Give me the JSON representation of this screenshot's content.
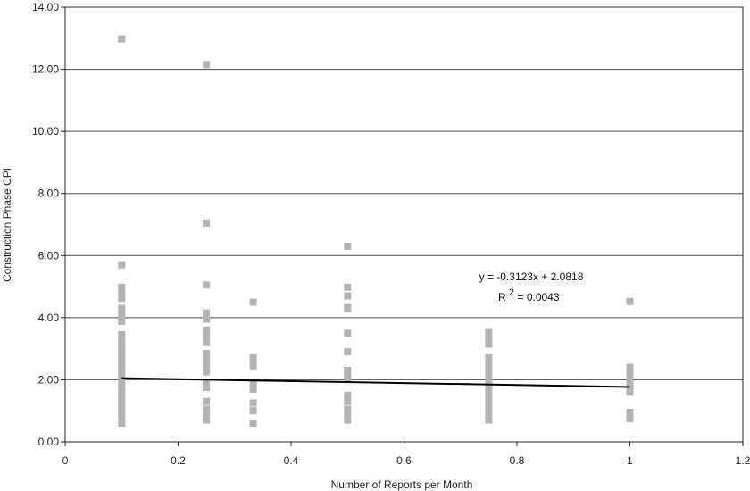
{
  "chart_data": {
    "type": "scatter",
    "title": "",
    "xlabel": "Number of Reports per Month",
    "ylabel": "Construction Phase CPI",
    "xlim": [
      0,
      1.2
    ],
    "ylim": [
      0,
      14
    ],
    "x_ticks": [
      "0",
      "0.2",
      "0.4",
      "0.6",
      "0.8",
      "1",
      "1.2"
    ],
    "y_ticks": [
      "0.00",
      "2.00",
      "4.00",
      "6.00",
      "8.00",
      "10.00",
      "12.00",
      "14.00"
    ],
    "grid": "horizontal",
    "marker_color": "#b3b3b3",
    "trend_color": "#000000",
    "trendline": {
      "slope": -0.3123,
      "intercept": 2.0818,
      "x_range": [
        0.1,
        1.0
      ]
    },
    "equation": "y = -0.3123x + 2.0818",
    "r2_prefix": "R",
    "r2_exp": "2",
    "r2_value": " = 0.0043",
    "points": [
      {
        "x": 0.1,
        "y": 12.98
      },
      {
        "x": 0.1,
        "y": 5.7
      },
      {
        "x": 0.1,
        "y": 4.98
      },
      {
        "x": 0.1,
        "y": 4.82
      },
      {
        "x": 0.1,
        "y": 4.62
      },
      {
        "x": 0.1,
        "y": 4.3
      },
      {
        "x": 0.1,
        "y": 4.1
      },
      {
        "x": 0.1,
        "y": 3.88
      },
      {
        "x": 0.1,
        "y": 3.45
      },
      {
        "x": 0.1,
        "y": 3.3
      },
      {
        "x": 0.1,
        "y": 3.15
      },
      {
        "x": 0.1,
        "y": 3.0
      },
      {
        "x": 0.1,
        "y": 2.85
      },
      {
        "x": 0.1,
        "y": 2.7
      },
      {
        "x": 0.1,
        "y": 2.55
      },
      {
        "x": 0.1,
        "y": 2.4
      },
      {
        "x": 0.1,
        "y": 2.25
      },
      {
        "x": 0.1,
        "y": 2.1
      },
      {
        "x": 0.1,
        "y": 1.95
      },
      {
        "x": 0.1,
        "y": 1.8
      },
      {
        "x": 0.1,
        "y": 1.65
      },
      {
        "x": 0.1,
        "y": 1.5
      },
      {
        "x": 0.1,
        "y": 1.35
      },
      {
        "x": 0.1,
        "y": 1.2
      },
      {
        "x": 0.1,
        "y": 1.05
      },
      {
        "x": 0.1,
        "y": 0.9
      },
      {
        "x": 0.1,
        "y": 0.75
      },
      {
        "x": 0.1,
        "y": 0.6
      },
      {
        "x": 0.25,
        "y": 12.15
      },
      {
        "x": 0.25,
        "y": 7.05
      },
      {
        "x": 0.25,
        "y": 5.05
      },
      {
        "x": 0.25,
        "y": 4.15
      },
      {
        "x": 0.25,
        "y": 3.95
      },
      {
        "x": 0.25,
        "y": 3.6
      },
      {
        "x": 0.25,
        "y": 3.4
      },
      {
        "x": 0.25,
        "y": 3.2
      },
      {
        "x": 0.25,
        "y": 2.85
      },
      {
        "x": 0.25,
        "y": 2.65
      },
      {
        "x": 0.25,
        "y": 2.45
      },
      {
        "x": 0.25,
        "y": 2.25
      },
      {
        "x": 0.25,
        "y": 1.9
      },
      {
        "x": 0.25,
        "y": 1.75
      },
      {
        "x": 0.25,
        "y": 1.3
      },
      {
        "x": 0.25,
        "y": 1.05
      },
      {
        "x": 0.25,
        "y": 0.85
      },
      {
        "x": 0.25,
        "y": 0.7
      },
      {
        "x": 0.333,
        "y": 4.5
      },
      {
        "x": 0.333,
        "y": 2.7
      },
      {
        "x": 0.333,
        "y": 2.45
      },
      {
        "x": 0.333,
        "y": 1.85
      },
      {
        "x": 0.333,
        "y": 1.7
      },
      {
        "x": 0.333,
        "y": 1.25
      },
      {
        "x": 0.333,
        "y": 1.0
      },
      {
        "x": 0.333,
        "y": 0.6
      },
      {
        "x": 0.5,
        "y": 6.3
      },
      {
        "x": 0.5,
        "y": 4.98
      },
      {
        "x": 0.5,
        "y": 4.7
      },
      {
        "x": 0.5,
        "y": 4.35
      },
      {
        "x": 0.5,
        "y": 4.28
      },
      {
        "x": 0.5,
        "y": 3.5
      },
      {
        "x": 0.5,
        "y": 2.9
      },
      {
        "x": 0.5,
        "y": 2.3
      },
      {
        "x": 0.5,
        "y": 2.15
      },
      {
        "x": 0.5,
        "y": 2.05
      },
      {
        "x": 0.5,
        "y": 1.5
      },
      {
        "x": 0.5,
        "y": 1.3
      },
      {
        "x": 0.5,
        "y": 1.05
      },
      {
        "x": 0.5,
        "y": 0.85
      },
      {
        "x": 0.5,
        "y": 0.7
      },
      {
        "x": 0.75,
        "y": 3.55
      },
      {
        "x": 0.75,
        "y": 3.35
      },
      {
        "x": 0.75,
        "y": 3.15
      },
      {
        "x": 0.75,
        "y": 2.7
      },
      {
        "x": 0.75,
        "y": 2.5
      },
      {
        "x": 0.75,
        "y": 2.3
      },
      {
        "x": 0.75,
        "y": 2.1
      },
      {
        "x": 0.75,
        "y": 1.9
      },
      {
        "x": 0.75,
        "y": 1.7
      },
      {
        "x": 0.75,
        "y": 1.5
      },
      {
        "x": 0.75,
        "y": 1.3
      },
      {
        "x": 0.75,
        "y": 1.1
      },
      {
        "x": 0.75,
        "y": 0.9
      },
      {
        "x": 0.75,
        "y": 0.7
      },
      {
        "x": 1.0,
        "y": 4.52
      },
      {
        "x": 1.0,
        "y": 2.4
      },
      {
        "x": 1.0,
        "y": 2.2
      },
      {
        "x": 1.0,
        "y": 2.0
      },
      {
        "x": 1.0,
        "y": 1.8
      },
      {
        "x": 1.0,
        "y": 1.6
      },
      {
        "x": 1.0,
        "y": 0.95
      },
      {
        "x": 1.0,
        "y": 0.75
      }
    ]
  }
}
